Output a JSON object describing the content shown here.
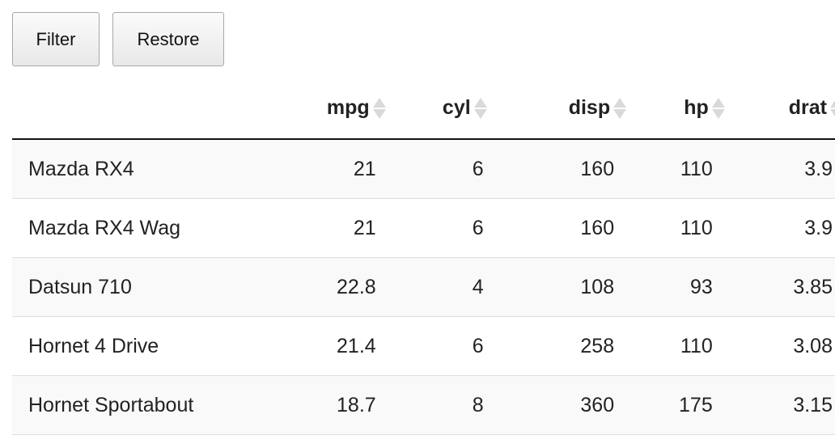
{
  "toolbar": {
    "filter_label": "Filter",
    "restore_label": "Restore"
  },
  "table": {
    "columns": [
      "",
      "mpg",
      "cyl",
      "disp",
      "hp",
      "drat"
    ],
    "rows": [
      [
        "Mazda RX4",
        "21",
        "6",
        "160",
        "110",
        "3.9"
      ],
      [
        "Mazda RX4 Wag",
        "21",
        "6",
        "160",
        "110",
        "3.9"
      ],
      [
        "Datsun 710",
        "22.8",
        "4",
        "108",
        "93",
        "3.85"
      ],
      [
        "Hornet 4 Drive",
        "21.4",
        "6",
        "258",
        "110",
        "3.08"
      ],
      [
        "Hornet Sportabout",
        "18.7",
        "8",
        "360",
        "175",
        "3.15"
      ]
    ]
  }
}
